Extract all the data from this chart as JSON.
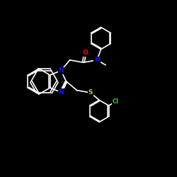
{
  "background_color": "#000000",
  "bond_color": "#ffffff",
  "N_color": "#1414ff",
  "O_color": "#ff0000",
  "S_color": "#cccc00",
  "Cl_color": "#33cc33",
  "bond_width": 1.2,
  "font_size_atom": 6.5,
  "figsize": [
    2.5,
    2.5
  ],
  "dpi": 100,
  "xlim": [
    0,
    10
  ],
  "ylim": [
    0,
    10
  ]
}
